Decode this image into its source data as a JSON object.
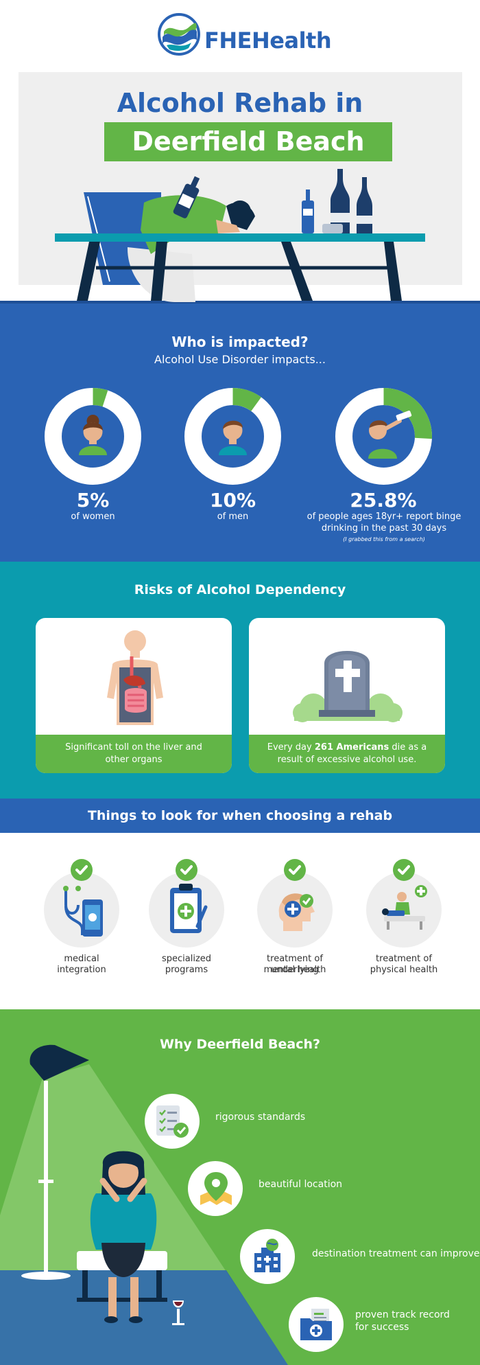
{
  "brand": {
    "name": "FHEHealth"
  },
  "hero": {
    "title_line1": "Alcohol Rehab in",
    "title_line2": "Deerfield Beach"
  },
  "impact": {
    "title": "Who is impacted?",
    "subtitle": "Alcohol Use Disorder impacts...",
    "stats": [
      {
        "value": "5%",
        "label": "of women",
        "fraction": 0.05
      },
      {
        "value": "10%",
        "label": "of men",
        "fraction": 0.1
      },
      {
        "value": "25.8%",
        "label_line1": "of people ages 18yr+ report binge",
        "label_line2": "drinking in the past 30 days",
        "note": "(I grabbed this from a search)",
        "fraction": 0.258
      }
    ]
  },
  "risks": {
    "title": "Risks of Alcohol Dependency",
    "cards": [
      {
        "text_line1": "Significant toll on the liver and",
        "text_line2": "other organs",
        "icon": "organs-icon"
      },
      {
        "text_prefix": "Every day ",
        "text_bold": "261 Americans",
        "text_suffix": " die as a",
        "text_line2": "result of excessive alcohol use.",
        "icon": "gravestone-icon"
      }
    ]
  },
  "things": {
    "title": "Things to look for when choosing a rehab",
    "items": [
      {
        "line1": "medical",
        "line2": "integration",
        "icon": "stethoscope-phone-icon"
      },
      {
        "line1": "specialized",
        "line2": "programs",
        "icon": "clipboard-plus-icon"
      },
      {
        "line1": "treatment of underlying",
        "line2": "mental health",
        "icon": "head-plus-icon"
      },
      {
        "line1": "treatment of",
        "line2": "physical health",
        "icon": "therapy-bed-icon"
      }
    ]
  },
  "why": {
    "title": "Why Deerfield Beach?",
    "items": [
      {
        "line1": "rigorous standards",
        "icon": "checklist-icon"
      },
      {
        "line1": "beautiful location",
        "icon": "map-pin-icon"
      },
      {
        "line1": "destination treatment can improve",
        "icon": "hospital-globe-icon"
      },
      {
        "line1": "proven track record",
        "line2": "for success",
        "icon": "medical-folder-icon"
      }
    ]
  },
  "colors": {
    "blue": "#2a63b4",
    "green": "#62b547",
    "teal": "#0b9cae",
    "navy": "#0e2a45"
  }
}
